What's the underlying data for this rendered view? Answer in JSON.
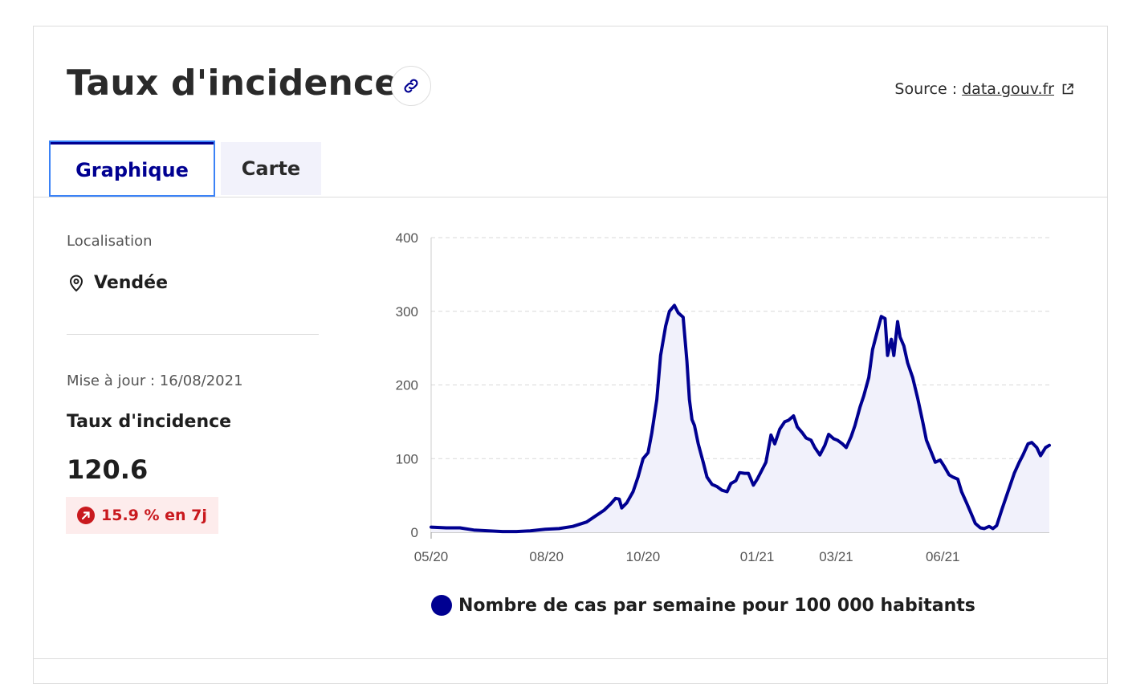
{
  "header": {
    "title": "Taux d'incidence",
    "source_label": "Source :",
    "source_link": "data.gouv.fr"
  },
  "tabs": [
    {
      "label": "Graphique",
      "active": true
    },
    {
      "label": "Carte",
      "active": false
    }
  ],
  "side": {
    "location_label": "Localisation",
    "location_value": "Vendée",
    "update_label": "Mise à jour : 16/08/2021",
    "metric_name": "Taux d'incidence",
    "metric_value": "120.6",
    "trend": "15.9 % en 7j"
  },
  "colors": {
    "accent": "#000091",
    "trend_up": "#c9191e",
    "trend_bg": "#fdecec"
  },
  "icons": {
    "link": "link-icon",
    "external": "external-link-icon",
    "pin": "map-pin-icon",
    "trend": "arrow-up-right-icon"
  },
  "chart_data": {
    "type": "area",
    "ylim": [
      0,
      400
    ],
    "yticks": [
      0,
      100,
      200,
      300,
      400
    ],
    "xticks": [
      "05/20",
      "08/20",
      "10/20",
      "01/21",
      "03/21",
      "06/21"
    ],
    "grid": true,
    "legend": "Nombre de cas par semaine pour 100 000 habitants",
    "legend_position": "bottom",
    "series": [
      {
        "name": "Nombre de cas par semaine pour 100 000 habitants",
        "color": "#000091",
        "points": [
          [
            "2020-05-13",
            7
          ],
          [
            "2020-05-25",
            6
          ],
          [
            "2020-06-05",
            6
          ],
          [
            "2020-06-16",
            3
          ],
          [
            "2020-06-28",
            2
          ],
          [
            "2020-07-09",
            1
          ],
          [
            "2020-07-20",
            1
          ],
          [
            "2020-07-31",
            2
          ],
          [
            "2020-08-12",
            4
          ],
          [
            "2020-08-23",
            5
          ],
          [
            "2020-09-03",
            8
          ],
          [
            "2020-09-14",
            14
          ],
          [
            "2020-09-21",
            22
          ],
          [
            "2020-09-28",
            30
          ],
          [
            "2020-10-03",
            38
          ],
          [
            "2020-10-07",
            46
          ],
          [
            "2020-10-10",
            45
          ],
          [
            "2020-10-12",
            33
          ],
          [
            "2020-10-16",
            40
          ],
          [
            "2020-10-21",
            55
          ],
          [
            "2020-10-25",
            75
          ],
          [
            "2020-10-29",
            100
          ],
          [
            "2020-11-02",
            108
          ],
          [
            "2020-11-05",
            135
          ],
          [
            "2020-11-09",
            180
          ],
          [
            "2020-11-12",
            240
          ],
          [
            "2020-11-16",
            280
          ],
          [
            "2020-11-19",
            300
          ],
          [
            "2020-11-23",
            308
          ],
          [
            "2020-11-26",
            298
          ],
          [
            "2020-11-30",
            292
          ],
          [
            "2020-12-03",
            232
          ],
          [
            "2020-12-05",
            180
          ],
          [
            "2020-12-07",
            153
          ],
          [
            "2020-12-09",
            145
          ],
          [
            "2020-12-12",
            120
          ],
          [
            "2020-12-16",
            95
          ],
          [
            "2020-12-19",
            75
          ],
          [
            "2020-12-23",
            65
          ],
          [
            "2020-12-27",
            62
          ],
          [
            "2020-12-31",
            57
          ],
          [
            "2021-01-04",
            55
          ],
          [
            "2021-01-07",
            66
          ],
          [
            "2021-01-11",
            70
          ],
          [
            "2021-01-14",
            81
          ],
          [
            "2021-01-18",
            80
          ],
          [
            "2021-01-21",
            80
          ],
          [
            "2021-01-25",
            64
          ],
          [
            "2021-01-28",
            72
          ],
          [
            "2021-02-01",
            85
          ],
          [
            "2021-02-04",
            95
          ],
          [
            "2021-02-08",
            132
          ],
          [
            "2021-02-11",
            120
          ],
          [
            "2021-02-15",
            140
          ],
          [
            "2021-02-19",
            150
          ],
          [
            "2021-02-22",
            152
          ],
          [
            "2021-02-26",
            158
          ],
          [
            "2021-03-01",
            143
          ],
          [
            "2021-03-05",
            135
          ],
          [
            "2021-03-08",
            128
          ],
          [
            "2021-03-12",
            125
          ],
          [
            "2021-03-15",
            115
          ],
          [
            "2021-03-19",
            105
          ],
          [
            "2021-03-23",
            118
          ],
          [
            "2021-03-26",
            133
          ],
          [
            "2021-03-30",
            127
          ],
          [
            "2021-04-02",
            125
          ],
          [
            "2021-04-06",
            120
          ],
          [
            "2021-04-09",
            115
          ],
          [
            "2021-04-13",
            130
          ],
          [
            "2021-04-16",
            145
          ],
          [
            "2021-04-20",
            170
          ],
          [
            "2021-04-23",
            185
          ],
          [
            "2021-04-27",
            210
          ],
          [
            "2021-04-30",
            248
          ],
          [
            "2021-05-04",
            274
          ],
          [
            "2021-05-07",
            293
          ],
          [
            "2021-05-10",
            290
          ],
          [
            "2021-05-12",
            240
          ],
          [
            "2021-05-15",
            262
          ],
          [
            "2021-05-17",
            240
          ],
          [
            "2021-05-20",
            286
          ],
          [
            "2021-05-22",
            265
          ],
          [
            "2021-05-25",
            253
          ],
          [
            "2021-05-28",
            230
          ],
          [
            "2021-06-01",
            210
          ],
          [
            "2021-06-05",
            182
          ],
          [
            "2021-06-09",
            150
          ],
          [
            "2021-06-12",
            125
          ],
          [
            "2021-06-16",
            108
          ],
          [
            "2021-06-19",
            95
          ],
          [
            "2021-06-23",
            98
          ],
          [
            "2021-06-26",
            90
          ],
          [
            "2021-06-30",
            78
          ],
          [
            "2021-07-03",
            75
          ],
          [
            "2021-07-07",
            72
          ],
          [
            "2021-07-10",
            55
          ],
          [
            "2021-07-14",
            40
          ],
          [
            "2021-07-18",
            24
          ],
          [
            "2021-07-21",
            12
          ],
          [
            "2021-07-25",
            6
          ],
          [
            "2021-07-28",
            5
          ],
          [
            "2021-08-01",
            8
          ],
          [
            "2021-08-04",
            5
          ],
          [
            "2021-08-07",
            9
          ],
          [
            "2021-08-11",
            30
          ],
          [
            "2021-08-14",
            45
          ],
          [
            "2021-08-18",
            65
          ],
          [
            "2021-08-21",
            80
          ],
          [
            "2021-08-25",
            95
          ],
          [
            "2021-08-28",
            105
          ],
          [
            "2021-09-01",
            120
          ],
          [
            "2021-09-04",
            122
          ],
          [
            "2021-09-08",
            115
          ],
          [
            "2021-09-11",
            104
          ],
          [
            "2021-09-15",
            115
          ],
          [
            "2021-09-18",
            118
          ]
        ]
      }
    ]
  }
}
